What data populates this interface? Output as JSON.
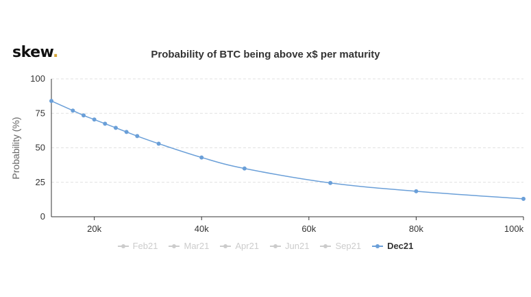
{
  "logo": {
    "text": "skew",
    "dot": ".",
    "dot_color": "#d4a437"
  },
  "chart_data": {
    "type": "line",
    "title": "Probability of BTC being above x$ per maturity",
    "ylabel": "Probability (%)",
    "xlabel": "",
    "xlim": [
      12000,
      100000
    ],
    "ylim": [
      0,
      100
    ],
    "x_ticks": [
      20000,
      40000,
      60000,
      80000,
      100000
    ],
    "x_tick_labels": [
      "20k",
      "40k",
      "60k",
      "80k",
      "100k"
    ],
    "y_ticks": [
      0,
      25,
      50,
      75,
      100
    ],
    "y_tick_labels": [
      "0",
      "25",
      "50",
      "75",
      "100"
    ],
    "grid": "horizontal dashed",
    "legend_position": "bottom",
    "series": [
      {
        "name": "Feb21",
        "visible": false,
        "color": "#cccccc",
        "x": [],
        "y": []
      },
      {
        "name": "Mar21",
        "visible": false,
        "color": "#cccccc",
        "x": [],
        "y": []
      },
      {
        "name": "Apr21",
        "visible": false,
        "color": "#cccccc",
        "x": [],
        "y": []
      },
      {
        "name": "Jun21",
        "visible": false,
        "color": "#cccccc",
        "x": [],
        "y": []
      },
      {
        "name": "Sep21",
        "visible": false,
        "color": "#cccccc",
        "x": [],
        "y": []
      },
      {
        "name": "Dec21",
        "visible": true,
        "color": "#6a9fd8",
        "x": [
          12000,
          16000,
          18000,
          20000,
          22000,
          24000,
          26000,
          28000,
          32000,
          40000,
          48000,
          64000,
          80000,
          100000
        ],
        "y": [
          84,
          77,
          73.5,
          70.5,
          67.5,
          64.5,
          61.5,
          58.5,
          53,
          43,
          35,
          24.5,
          18.5,
          13
        ]
      }
    ]
  }
}
